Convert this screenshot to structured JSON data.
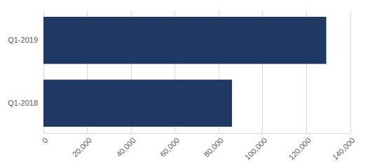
{
  "chart_data": {
    "type": "bar",
    "orientation": "horizontal",
    "categories": [
      "Q1-2019",
      "Q1-2018"
    ],
    "values": [
      129000,
      86000
    ],
    "color": "#203864",
    "xlim": [
      0,
      140000
    ],
    "xticks": [
      0,
      {
        "value": 20000,
        "label": "20,000"
      },
      {
        "value": 40000,
        "label": "40,000"
      },
      {
        "value": 60000,
        "label": "60,000"
      },
      {
        "value": 80000,
        "label": "80,000"
      },
      {
        "value": 100000,
        "label": "100,000"
      },
      {
        "value": 120000,
        "label": "120,000"
      },
      {
        "value": 140000,
        "label": "140,000"
      }
    ],
    "grid": true
  }
}
